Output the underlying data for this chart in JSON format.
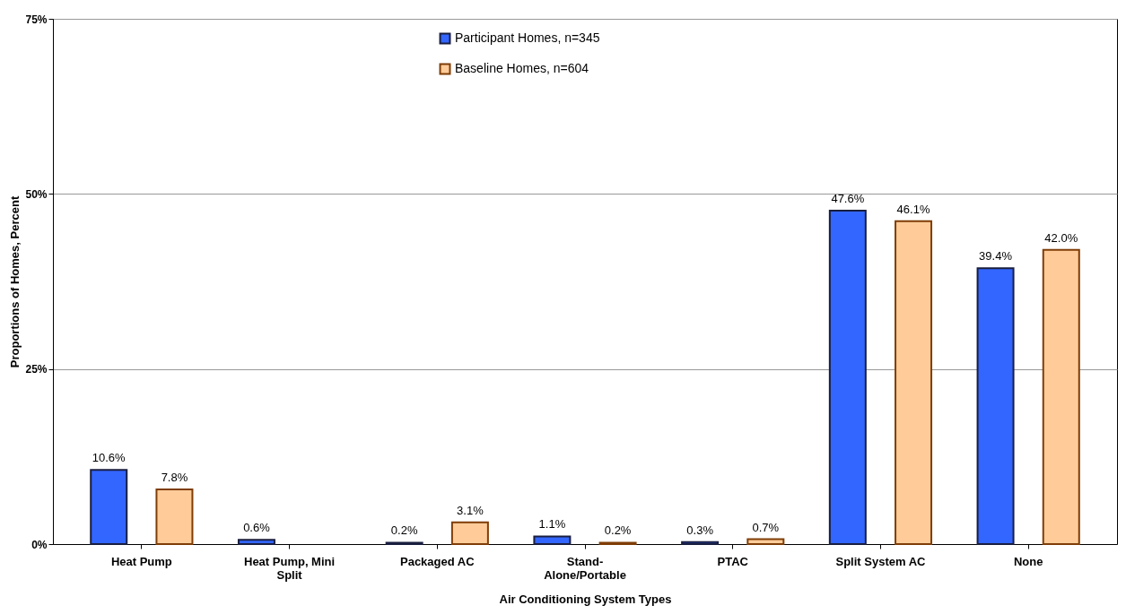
{
  "chart_data": {
    "type": "bar",
    "xlabel": "Air Conditioning System Types",
    "ylabel": "Proportions of Homes, Percent",
    "categories": [
      "Heat Pump",
      "Heat Pump, Mini Split",
      "Packaged AC",
      "Stand-Alone/Portable",
      "PTAC",
      "Split System AC",
      "None"
    ],
    "series": [
      {
        "name": "Participant Homes, n=345",
        "color": "#3366ff",
        "values": [
          10.6,
          0.6,
          0.2,
          1.1,
          0.3,
          47.6,
          39.4
        ],
        "value_labels": [
          "10.6%",
          "0.6%",
          "0.2%",
          "1.1%",
          "0.3%",
          "47.6%",
          "39.4%"
        ]
      },
      {
        "name": "Baseline Homes, n=604",
        "color": "#ffcc99",
        "values": [
          7.8,
          null,
          3.1,
          0.2,
          0.7,
          46.1,
          42.0
        ],
        "value_labels": [
          "7.8%",
          null,
          "3.1%",
          "0.2%",
          "0.7%",
          "46.1%",
          "42.0%"
        ]
      }
    ],
    "ylim": [
      0,
      75
    ],
    "yticks": [
      {
        "value": 0,
        "label": "0%"
      },
      {
        "value": 25,
        "label": "25%"
      },
      {
        "value": 50,
        "label": "50%"
      },
      {
        "value": 75,
        "label": "75%"
      }
    ],
    "grid": "y",
    "legend": "top"
  }
}
